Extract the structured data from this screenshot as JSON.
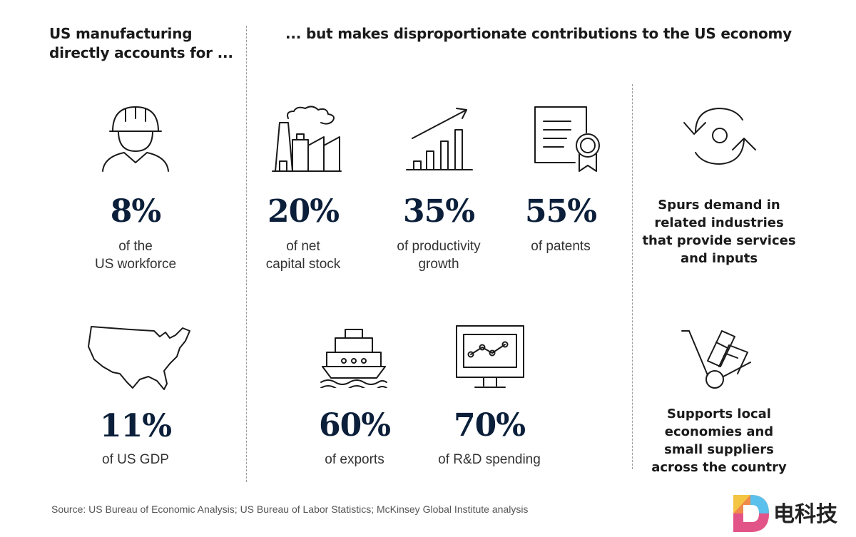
{
  "left_heading": "US manufacturing\ndirectly accounts for ...",
  "right_heading": "... but makes disproportionate contributions to the US economy",
  "stats": [
    {
      "value": "8%",
      "caption": "of the\nUS workforce",
      "icon": "worker-hardhat-icon"
    },
    {
      "value": "11%",
      "caption": "of US GDP",
      "icon": "usa-map-icon"
    },
    {
      "value": "20%",
      "caption": "of net\ncapital stock",
      "icon": "factory-icon"
    },
    {
      "value": "35%",
      "caption": "of productivity\ngrowth",
      "icon": "bar-growth-icon"
    },
    {
      "value": "55%",
      "caption": "of patents",
      "icon": "certificate-icon"
    },
    {
      "value": "60%",
      "caption": "of exports",
      "icon": "ship-icon"
    },
    {
      "value": "70%",
      "caption": "of R&D spending",
      "icon": "monitor-chart-icon"
    }
  ],
  "notes": [
    {
      "text": "Spurs demand in\nrelated industries\nthat provide services\nand inputs",
      "icon": "cycle-arrows-icon"
    },
    {
      "text": "Supports local\neconomies and\nsmall suppliers\nacross the country",
      "icon": "hand-truck-icon"
    }
  ],
  "source": "Source: US Bureau of Economic Analysis; US Bureau of Labor Statistics; McKinsey Global Institute analysis",
  "watermark": {
    "text": "电科技",
    "logo_colors": [
      "#f4c542",
      "#f08a4b",
      "#e04e8f",
      "#5bc0eb"
    ]
  }
}
